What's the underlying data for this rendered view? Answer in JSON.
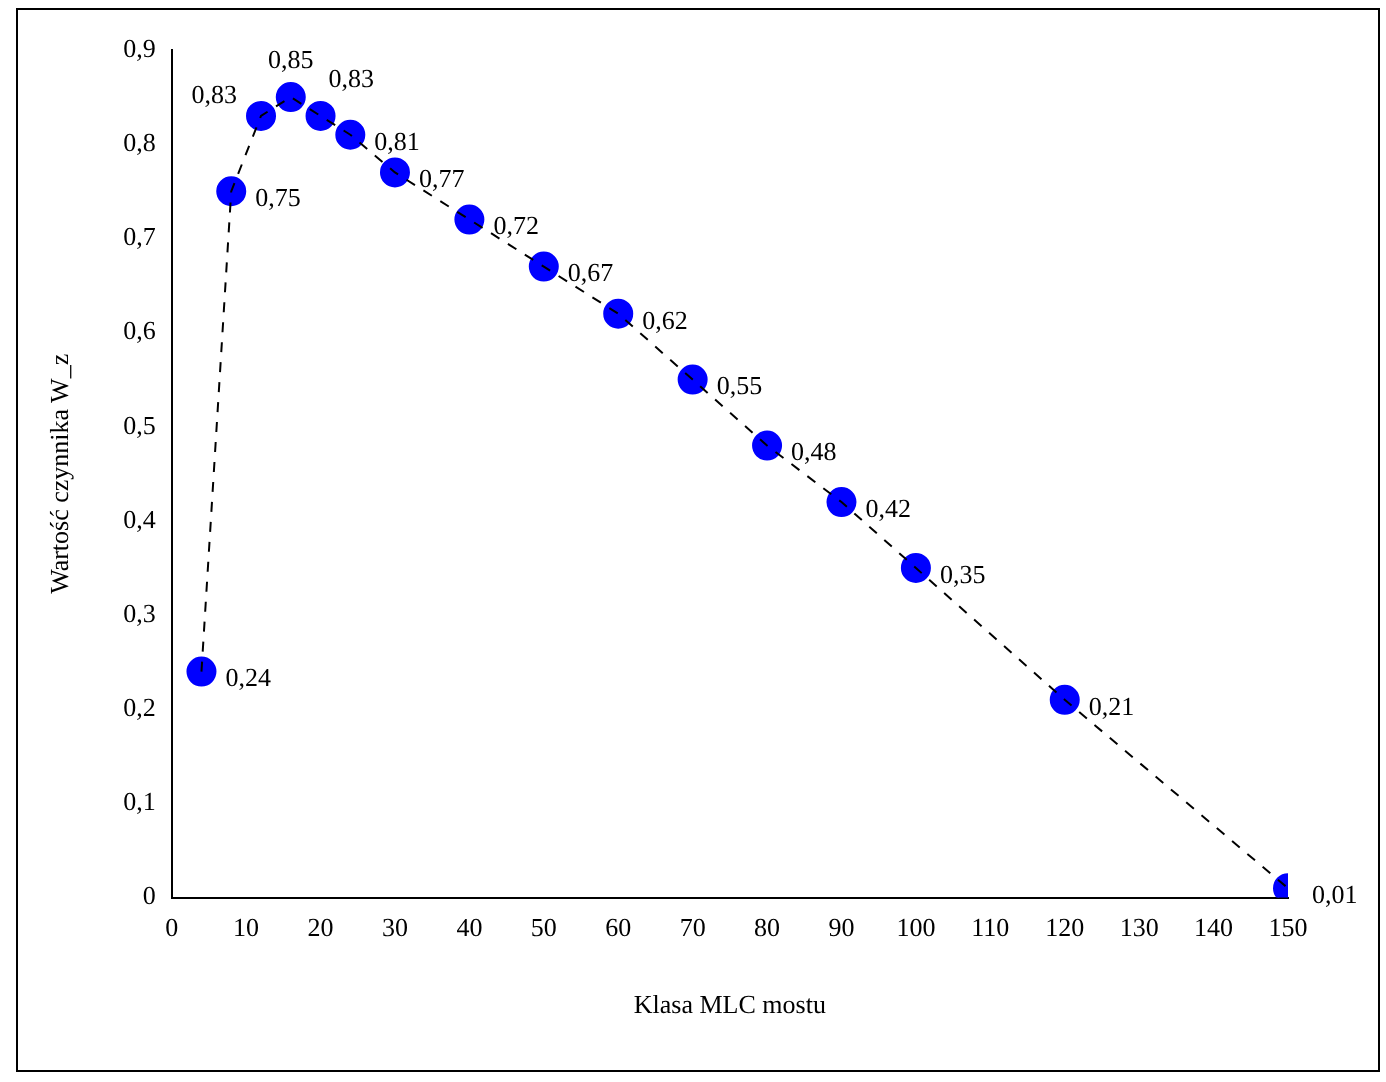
{
  "chart_data": {
    "type": "scatter",
    "xlabel": "Klasa MLC mostu",
    "ylabel": "Wartość czynnika W_z",
    "x": [
      4,
      8,
      12,
      16,
      20,
      24,
      30,
      40,
      50,
      60,
      70,
      80,
      90,
      100,
      120,
      150
    ],
    "series": [
      {
        "type": "line",
        "color": "#000000",
        "line_style": "dashed",
        "marker": "none",
        "values": [
          0.24,
          0.75,
          0.83,
          0.85,
          0.83,
          0.81,
          0.77,
          0.72,
          0.67,
          0.62,
          0.55,
          0.48,
          0.42,
          0.35,
          0.21,
          0.01
        ]
      },
      {
        "color": "#0000ff",
        "marker": "circle",
        "values": [
          0.24,
          0.75,
          0.83,
          0.85,
          0.83,
          0.81,
          0.77,
          0.72,
          0.67,
          0.62,
          0.55,
          0.48,
          0.42,
          0.35,
          0.21,
          0.01
        ],
        "value_labels": [
          "0,24",
          "0,75",
          "0,83",
          "0,85",
          "0,83",
          "0,81",
          "0,77",
          "0,72",
          "0,67",
          "0,62",
          "0,55",
          "0,48",
          "0,42",
          "0,35",
          "0,21",
          "0,01"
        ]
      }
    ],
    "grid": false,
    "legend": false,
    "xlim": [
      0,
      150
    ],
    "xticks": [
      0,
      10,
      20,
      30,
      40,
      50,
      60,
      70,
      80,
      90,
      100,
      110,
      120,
      130,
      140,
      150
    ],
    "ylim": [
      0,
      0.9
    ],
    "yticks": [
      0,
      {
        "value": 0.1,
        "label": "0,1"
      },
      {
        "value": 0.2,
        "label": "0,2"
      },
      {
        "value": 0.3,
        "label": "0,3"
      },
      {
        "value": 0.4,
        "label": "0,4"
      },
      {
        "value": 0.5,
        "label": "0,5"
      },
      {
        "value": 0.6,
        "label": "0,6"
      },
      {
        "value": 0.7,
        "label": "0,7"
      },
      {
        "value": 0.8,
        "label": "0,8"
      },
      {
        "value": 0.9,
        "label": "0,9"
      }
    ]
  }
}
